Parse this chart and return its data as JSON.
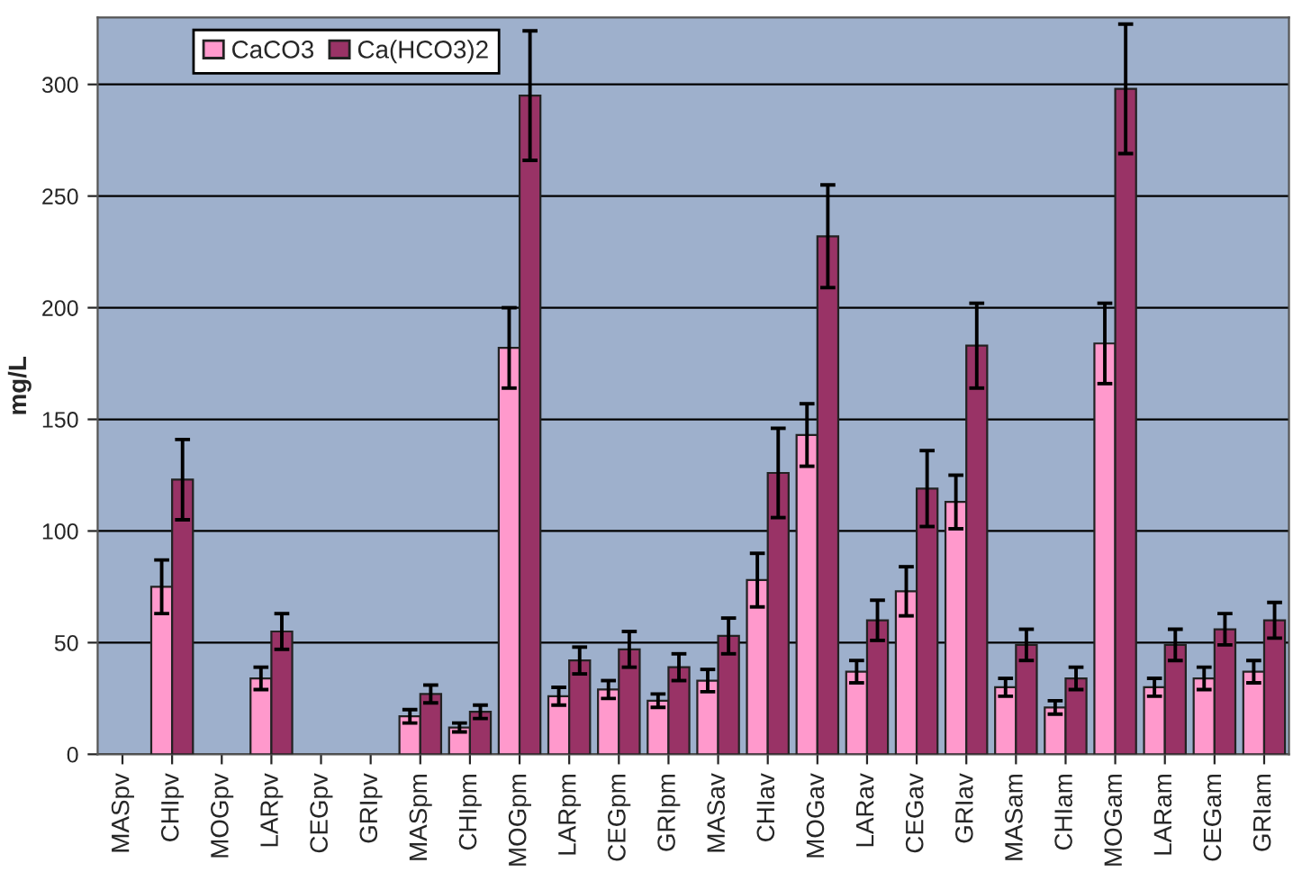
{
  "chart_data": {
    "type": "bar",
    "ylabel": "mg/L",
    "categories": [
      "MASpv",
      "CHIpv",
      "MOGpv",
      "LARpv",
      "CEGpv",
      "GRIpv",
      "MASpm",
      "CHIpm",
      "MOGpm",
      "LARpm",
      "CEGpm",
      "GRIpm",
      "MASav",
      "CHIav",
      "MOGav",
      "LARav",
      "CEGav",
      "GRIav",
      "MASam",
      "CHIam",
      "MOGam",
      "LARam",
      "CEGam",
      "GRIam"
    ],
    "series": [
      {
        "name": "CaCO3",
        "color": "#ff99cc",
        "values": [
          null,
          75,
          null,
          34,
          null,
          null,
          17,
          12,
          182,
          26,
          29,
          24,
          33,
          78,
          143,
          37,
          73,
          113,
          30,
          21,
          184,
          30,
          34,
          37
        ],
        "errors": [
          null,
          12,
          null,
          5,
          null,
          null,
          3,
          2,
          18,
          4,
          4,
          3,
          5,
          12,
          14,
          5,
          11,
          12,
          4,
          3,
          18,
          4,
          5,
          5
        ]
      },
      {
        "name": "Ca(HCO3)2",
        "color": "#993366",
        "values": [
          null,
          123,
          null,
          55,
          null,
          null,
          27,
          19,
          295,
          42,
          47,
          39,
          53,
          126,
          232,
          60,
          119,
          183,
          49,
          34,
          298,
          49,
          56,
          60
        ],
        "errors": [
          null,
          18,
          null,
          8,
          null,
          null,
          4,
          3,
          29,
          6,
          8,
          6,
          8,
          20,
          23,
          9,
          17,
          19,
          7,
          5,
          29,
          7,
          7,
          8
        ]
      }
    ],
    "ylim": [
      0,
      330
    ],
    "yticks": [
      0,
      50,
      100,
      150,
      200,
      250,
      300
    ],
    "grid": "y",
    "legend": "top left"
  }
}
